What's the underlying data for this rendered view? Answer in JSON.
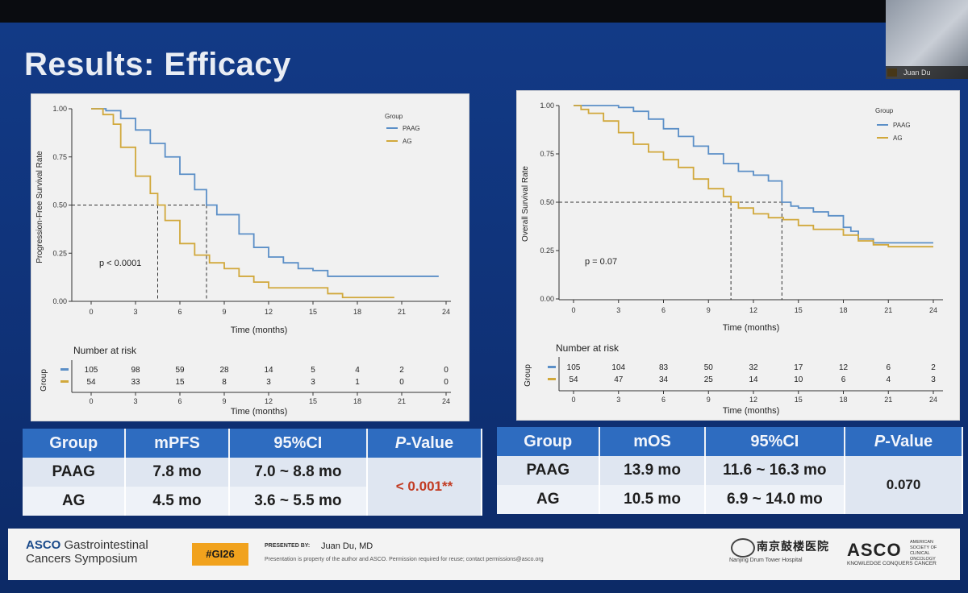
{
  "slide": {
    "title": "Results: Efficacy",
    "webcam_label": "Juan Du"
  },
  "pfs": {
    "ylabel": "Progression-Free Survival Rate",
    "xlabel": "Time (months)",
    "legend_title": "Group",
    "pvalue": "p < 0.0001",
    "risk_title": "Number at risk",
    "risk_group_label": "Group",
    "risk": [
      [
        105,
        98,
        59,
        28,
        14,
        5,
        4,
        2,
        0
      ],
      [
        54,
        33,
        15,
        8,
        3,
        3,
        1,
        0,
        0
      ]
    ]
  },
  "os": {
    "ylabel": "Overall Survival Rate",
    "xlabel": "Time (months)",
    "legend_title": "Group",
    "pvalue": "p = 0.07",
    "risk_title": "Number at risk",
    "risk_group_label": "Group",
    "risk": [
      [
        105,
        104,
        83,
        50,
        32,
        17,
        12,
        6,
        2
      ],
      [
        54,
        47,
        34,
        25,
        14,
        10,
        6,
        4,
        3
      ]
    ]
  },
  "colors": {
    "paag": "#5b8fc7",
    "ag": "#d1a83b"
  },
  "chart_data": [
    {
      "type": "line",
      "title": "Progression-Free Survival",
      "xlabel": "Time (months)",
      "ylabel": "Progression-Free Survival Rate",
      "xlim": [
        0,
        24
      ],
      "ylim": [
        0,
        1
      ],
      "xticks": [
        "0",
        "3",
        "6",
        "9",
        "12",
        "15",
        "18",
        "21",
        "24"
      ],
      "yticks": [
        "0.00",
        "0.25",
        "0.50",
        "0.75",
        "1.00"
      ],
      "legend": [
        "PAAG",
        "AG"
      ],
      "annotation": "p < 0.0001",
      "median_lines": [
        4.5,
        7.8
      ],
      "series": [
        {
          "name": "PAAG",
          "x": [
            0,
            1,
            2,
            3,
            4,
            5,
            6,
            7,
            7.8,
            8.5,
            10,
            11,
            12,
            13,
            14,
            15,
            16,
            17,
            18,
            19,
            20,
            21,
            22,
            23,
            23.5
          ],
          "y": [
            1.0,
            0.99,
            0.95,
            0.89,
            0.82,
            0.75,
            0.66,
            0.58,
            0.5,
            0.45,
            0.35,
            0.28,
            0.23,
            0.2,
            0.17,
            0.16,
            0.13,
            0.13,
            0.13,
            0.13,
            0.13,
            0.13,
            0.13,
            0.13,
            0.13
          ]
        },
        {
          "name": "AG",
          "x": [
            0,
            0.8,
            1.5,
            2,
            3,
            4,
            4.5,
            5,
            6,
            7,
            8,
            9,
            10,
            11,
            12,
            13,
            15,
            16,
            17,
            18,
            19,
            20,
            20.5
          ],
          "y": [
            1.0,
            0.97,
            0.92,
            0.8,
            0.65,
            0.56,
            0.5,
            0.42,
            0.3,
            0.24,
            0.2,
            0.17,
            0.13,
            0.1,
            0.07,
            0.07,
            0.07,
            0.04,
            0.02,
            0.02,
            0.02,
            0.02,
            0.02
          ]
        }
      ],
      "risk_table": {
        "times": [
          0,
          3,
          6,
          9,
          12,
          15,
          18,
          21,
          24
        ],
        "PAAG": [
          105,
          98,
          59,
          28,
          14,
          5,
          4,
          2,
          0
        ],
        "AG": [
          54,
          33,
          15,
          8,
          3,
          3,
          1,
          0,
          0
        ]
      }
    },
    {
      "type": "line",
      "title": "Overall Survival",
      "xlabel": "Time (months)",
      "ylabel": "Overall Survival Rate",
      "xlim": [
        0,
        24
      ],
      "ylim": [
        0,
        1
      ],
      "xticks": [
        "0",
        "3",
        "6",
        "9",
        "12",
        "15",
        "18",
        "21",
        "24"
      ],
      "yticks": [
        "0.00",
        "0.25",
        "0.50",
        "0.75",
        "1.00"
      ],
      "legend": [
        "PAAG",
        "AG"
      ],
      "annotation": "p = 0.07",
      "median_lines": [
        10.5,
        13.9
      ],
      "series": [
        {
          "name": "PAAG",
          "x": [
            0,
            1,
            2,
            3,
            4,
            5,
            6,
            7,
            8,
            9,
            10,
            11,
            12,
            13,
            13.9,
            14.5,
            15,
            16,
            17,
            18,
            18.5,
            19,
            20,
            21,
            22,
            23,
            24
          ],
          "y": [
            1.0,
            1.0,
            1.0,
            0.99,
            0.97,
            0.93,
            0.88,
            0.84,
            0.79,
            0.75,
            0.7,
            0.66,
            0.64,
            0.61,
            0.5,
            0.48,
            0.47,
            0.45,
            0.43,
            0.37,
            0.35,
            0.31,
            0.29,
            0.29,
            0.29,
            0.29,
            0.29
          ]
        },
        {
          "name": "AG",
          "x": [
            0,
            0.5,
            1,
            2,
            3,
            4,
            5,
            6,
            7,
            8,
            9,
            10,
            10.5,
            11,
            12,
            13,
            14,
            15,
            16,
            17,
            18,
            19,
            20,
            21,
            22,
            23,
            24
          ],
          "y": [
            1.0,
            0.98,
            0.96,
            0.92,
            0.86,
            0.8,
            0.76,
            0.72,
            0.68,
            0.62,
            0.57,
            0.53,
            0.5,
            0.47,
            0.44,
            0.42,
            0.41,
            0.38,
            0.36,
            0.36,
            0.33,
            0.3,
            0.28,
            0.27,
            0.27,
            0.27,
            0.27
          ]
        }
      ],
      "risk_table": {
        "times": [
          0,
          3,
          6,
          9,
          12,
          15,
          18,
          21,
          24
        ],
        "PAAG": [
          105,
          104,
          83,
          50,
          32,
          17,
          12,
          6,
          2
        ],
        "AG": [
          54,
          47,
          34,
          25,
          14,
          10,
          6,
          4,
          3
        ]
      }
    }
  ],
  "pfs_table": {
    "headers": [
      "Group",
      "mPFS",
      "95%CI",
      "P",
      "-Value"
    ],
    "rows": [
      {
        "group": "PAAG",
        "median": "7.8 mo",
        "ci": "7.0 ~ 8.8 mo"
      },
      {
        "group": "AG",
        "median": "4.5 mo",
        "ci": "3.6 ~ 5.5 mo"
      }
    ],
    "pvalue": "< 0.001**",
    "pvalue_color": "#c23b22"
  },
  "os_table": {
    "headers": [
      "Group",
      "mOS",
      "95%CI",
      "P",
      "-Value"
    ],
    "rows": [
      {
        "group": "PAAG",
        "median": "13.9 mo",
        "ci": "11.6 ~ 16.3 mo"
      },
      {
        "group": "AG",
        "median": "10.5 mo",
        "ci": "6.9 ~ 14.0 mo"
      }
    ],
    "pvalue": "0.070"
  },
  "footer": {
    "asco_line1_bold": "ASCO",
    "asco_line1": " Gastrointestinal",
    "asco_line2": "Cancers Symposium",
    "tag": "#GI26",
    "presented_by": "PRESENTED BY:",
    "presenter": "Juan Du, MD",
    "note": "Presentation is property of the author and ASCO. Permission required for reuse; contact permissions@asco.org",
    "hospital_cn": "南京鼓楼医院",
    "hospital_sub": "Nanjing Drum Tower Hospital",
    "logo": "ASCO",
    "logo_sub": "KNOWLEDGE CONQUERS CANCER",
    "logo_side": "AMERICAN SOCIETY OF CLINICAL ONCOLOGY"
  }
}
